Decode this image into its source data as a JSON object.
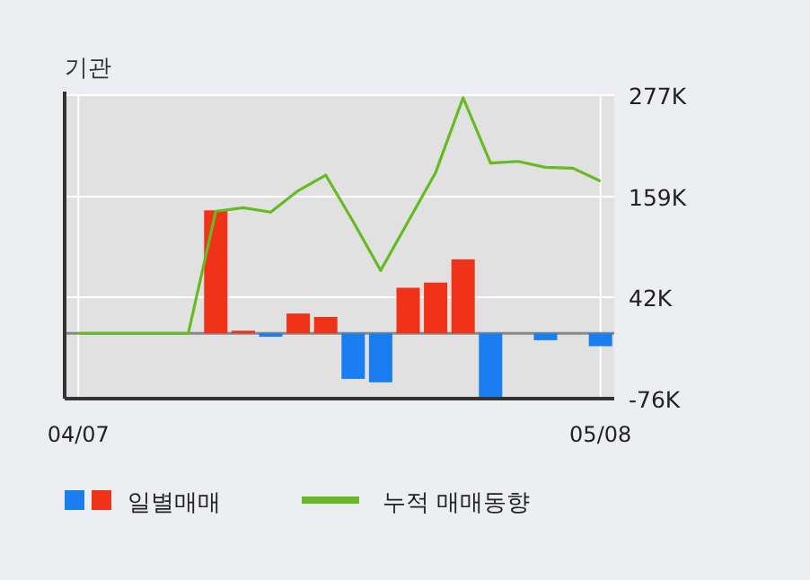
{
  "chart_data": {
    "type": "bar",
    "title": "기관",
    "categories": [
      "04/07",
      null,
      null,
      null,
      null,
      null,
      null,
      null,
      null,
      null,
      null,
      null,
      null,
      null,
      null,
      null,
      null,
      null,
      null,
      "05/08"
    ],
    "series": [
      {
        "name": "일별매매",
        "colors": [
          "#f03218",
          "#f03218",
          "#f03218",
          "#f03218",
          "#f03218",
          "#f03218",
          "#f03218",
          "#1a7ef0",
          "#f03218",
          "#f03218",
          "#1a7ef0",
          "#1a7ef0",
          "#f03218",
          "#f03218",
          "#f03218",
          "#1a7ef0",
          "#f03218",
          "#1a7ef0",
          "#f03218",
          "#1a7ef0"
        ],
        "values": [
          null,
          null,
          null,
          null,
          null,
          143,
          3,
          -4,
          23,
          19,
          -53,
          -57,
          53,
          59,
          86,
          -76,
          null,
          -8,
          null,
          -15
        ]
      },
      {
        "name": "누적 매매동향",
        "type": "line",
        "color": "#66bb22",
        "values": [
          0,
          0,
          0,
          0,
          0,
          142,
          146,
          141,
          166,
          184,
          130,
          73,
          130,
          187,
          274,
          198,
          200,
          193,
          192,
          177
        ]
      }
    ],
    "ylim": [
      -76,
      277
    ],
    "yticks": [
      {
        "value": -76,
        "label": "-76K"
      },
      {
        "value": 42,
        "label": "42K"
      },
      {
        "value": 159,
        "label": "159K"
      },
      {
        "value": 277,
        "label": "277K"
      }
    ],
    "grid": true,
    "legend": "bottom"
  }
}
